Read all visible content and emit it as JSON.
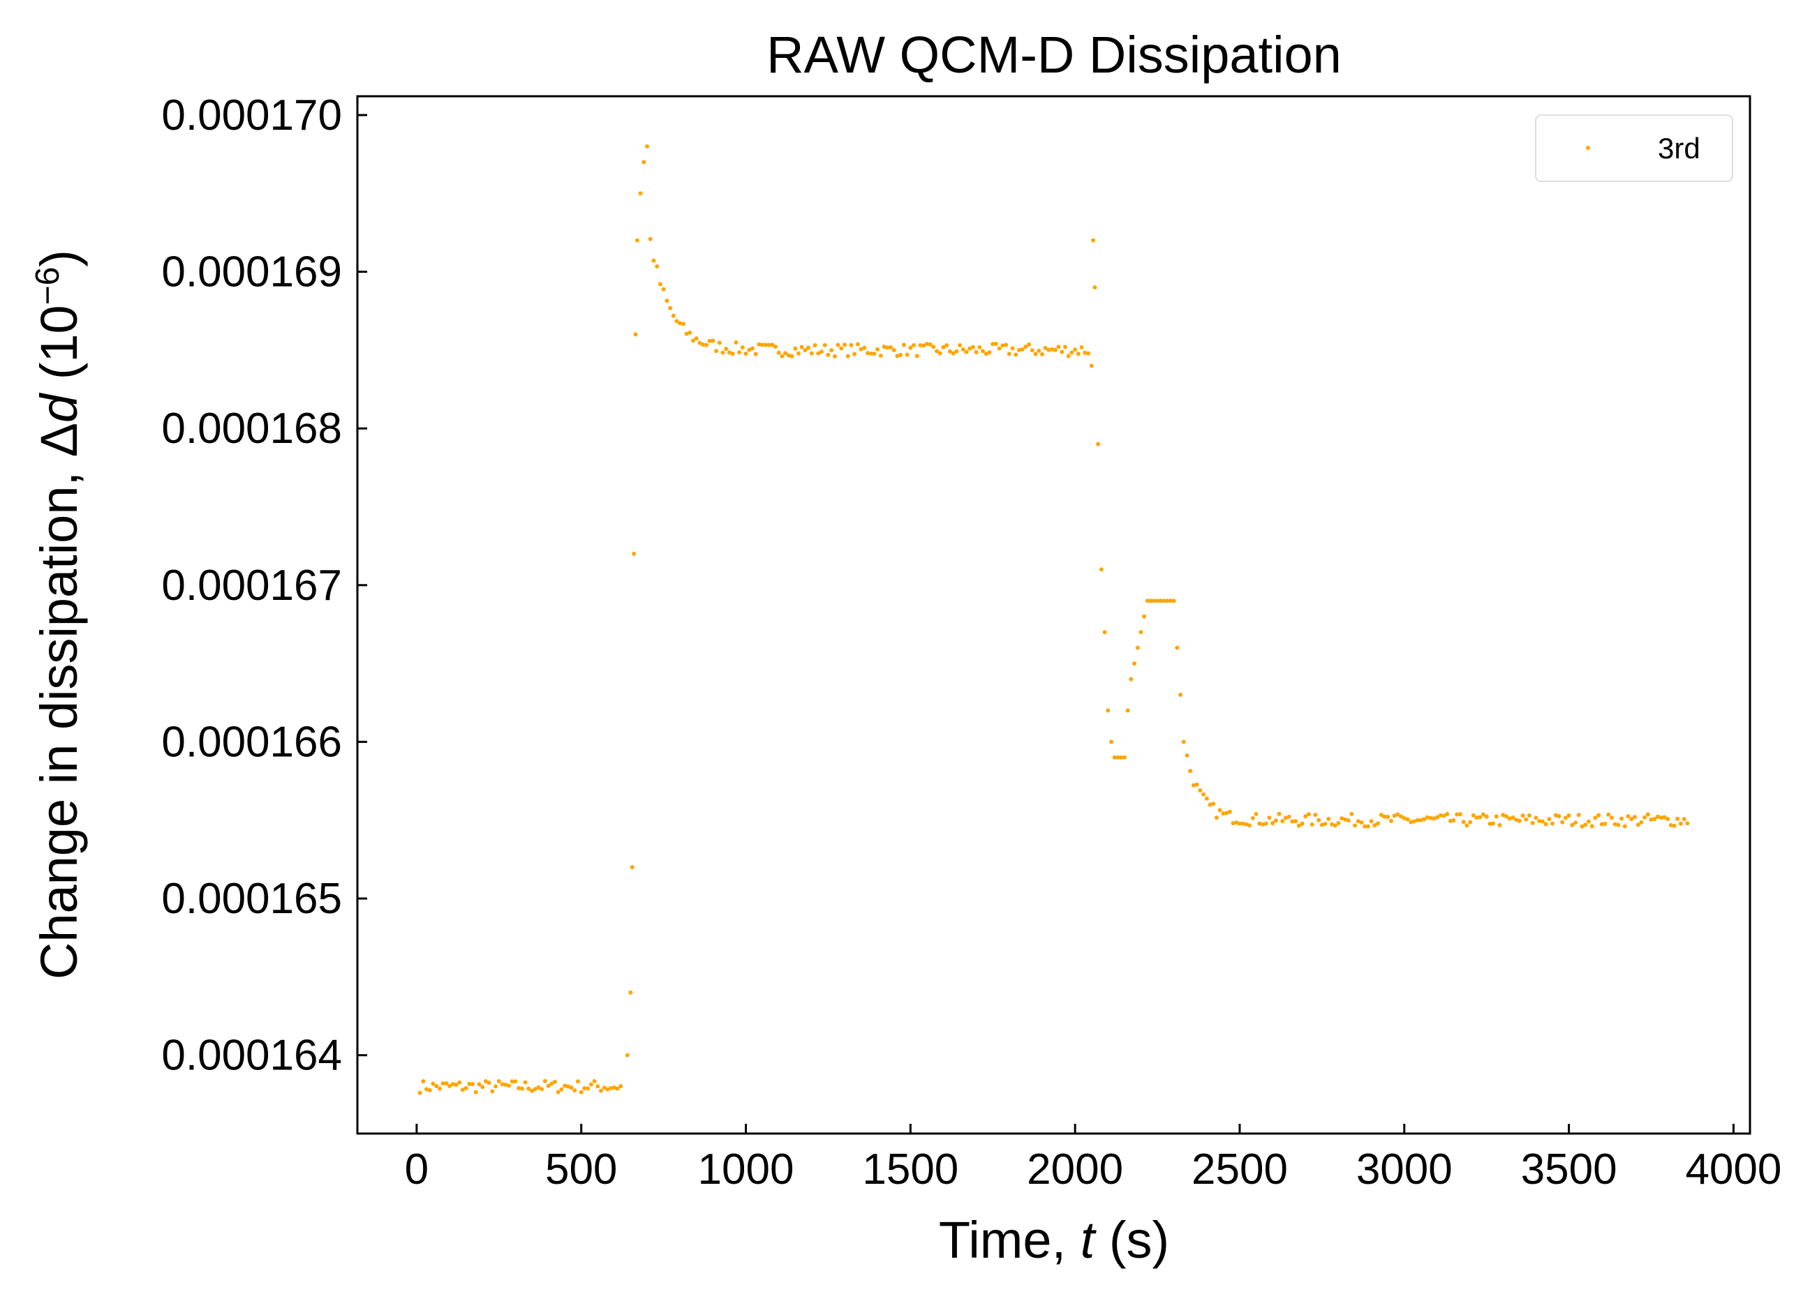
{
  "chart_data": {
    "type": "scatter",
    "title": "RAW QCM-D Dissipation",
    "xlabel": {
      "pre": "Time, ",
      "var": "t",
      "post": " (s)"
    },
    "ylabel": {
      "pre": "Change in dissipation, Δ",
      "var": "d",
      "post": " (10",
      "exp": "−6",
      "close": ")"
    },
    "xlim": [
      -180,
      4050
    ],
    "ylim": [
      0.0001635,
      0.00017012
    ],
    "x_ticks": [
      0,
      500,
      1000,
      1500,
      2000,
      2500,
      3000,
      3500,
      4000
    ],
    "x_tick_labels": [
      "0",
      "500",
      "1000",
      "1500",
      "2000",
      "2500",
      "3000",
      "3500",
      "4000"
    ],
    "y_ticks": [
      0.000164,
      0.000165,
      0.000166,
      0.000167,
      0.000168,
      0.000169,
      0.00017
    ],
    "y_tick_labels": [
      "0.000164",
      "0.000165",
      "0.000166",
      "0.000167",
      "0.000168",
      "0.000169",
      "0.000170"
    ],
    "grid": false,
    "legend_position": "top-right",
    "series": [
      {
        "name": "3rd",
        "color": "#FFA500",
        "sampling_note": "points sampled approximately every 10 s",
        "segments": [
          {
            "x_start": 10,
            "x_end": 620,
            "step": 10,
            "baseline": 0.0001638,
            "noise": 4e-08,
            "trend": "flat"
          },
          {
            "x_start": 640,
            "x_end": 700,
            "step": 10,
            "points": [
              [
                640,
                0.000164
              ],
              [
                650,
                0.0001644
              ],
              [
                655,
                0.0001652
              ],
              [
                660,
                0.0001672
              ],
              [
                665,
                0.0001686
              ],
              [
                670,
                0.0001692
              ],
              [
                680,
                0.0001695
              ],
              [
                690,
                0.0001697
              ],
              [
                700,
                0.0001698
              ]
            ]
          },
          {
            "x_start": 710,
            "x_end": 2040,
            "step": 10,
            "baseline": 0.0001685,
            "start_value": 0.0001692,
            "decay": 60,
            "noise": 4e-08,
            "trend": "decay"
          },
          {
            "x_start": 2050,
            "x_end": 2120,
            "step": 10,
            "points": [
              [
                2050,
                0.0001684
              ],
              [
                2055,
                0.0001692
              ],
              [
                2060,
                0.0001689
              ],
              [
                2070,
                0.0001679
              ],
              [
                2080,
                0.0001671
              ],
              [
                2090,
                0.0001667
              ],
              [
                2100,
                0.0001662
              ],
              [
                2110,
                0.000166
              ]
            ]
          },
          {
            "x_start": 2120,
            "x_end": 2330,
            "step": 10,
            "points": [
              [
                2120,
                0.0001659
              ],
              [
                2130,
                0.0001659
              ],
              [
                2140,
                0.0001659
              ],
              [
                2150,
                0.0001659
              ],
              [
                2160,
                0.0001662
              ],
              [
                2170,
                0.0001664
              ],
              [
                2180,
                0.0001665
              ],
              [
                2190,
                0.0001666
              ],
              [
                2200,
                0.0001667
              ],
              [
                2210,
                0.0001668
              ],
              [
                2220,
                0.0001669
              ],
              [
                2230,
                0.0001669
              ],
              [
                2240,
                0.0001669
              ],
              [
                2250,
                0.0001669
              ],
              [
                2260,
                0.0001669
              ],
              [
                2270,
                0.0001669
              ],
              [
                2280,
                0.0001669
              ],
              [
                2290,
                0.0001669
              ],
              [
                2300,
                0.0001669
              ],
              [
                2310,
                0.0001666
              ],
              [
                2320,
                0.0001663
              ],
              [
                2330,
                0.000166
              ]
            ]
          },
          {
            "x_start": 2340,
            "x_end": 3860,
            "step": 10,
            "baseline": 0.0001655,
            "start_value": 0.0001659,
            "decay": 45,
            "noise": 4e-08,
            "trend": "decay"
          }
        ]
      }
    ]
  }
}
